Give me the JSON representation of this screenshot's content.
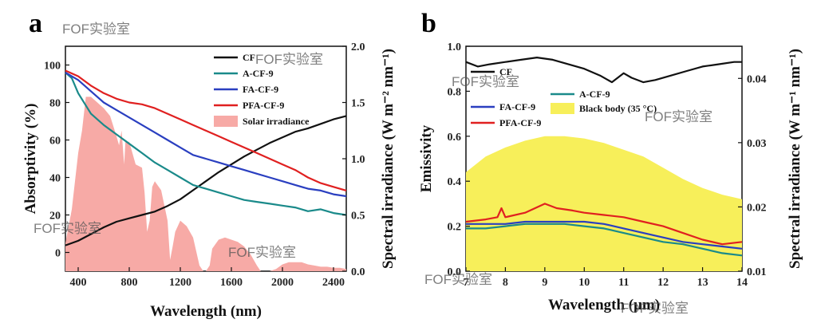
{
  "watermark": "FOF实验室",
  "chart_data": [
    {
      "panel": "a",
      "type": "line",
      "xlabel": "Wavelength (nm)",
      "ylabel": "Absorptivity (%)",
      "y2label": "Spectral irradiance (W m⁻² nm⁻¹)",
      "xlim": [
        300,
        2500
      ],
      "ylim": [
        -10,
        110
      ],
      "y2lim": [
        0,
        2.0
      ],
      "xticks": [
        400,
        800,
        1200,
        1600,
        2000,
        2400
      ],
      "yticks": [
        0,
        20,
        40,
        60,
        80,
        100
      ],
      "y2ticks": [
        "0.0",
        "0.5",
        "1.0",
        "1.5",
        "2.0"
      ],
      "legend_position": "top-right",
      "series": [
        {
          "name": "CF",
          "color": "#111111",
          "axis": "right",
          "x": [
            300,
            400,
            500,
            600,
            700,
            800,
            900,
            1000,
            1100,
            1200,
            1300,
            1400,
            1500,
            1600,
            1700,
            1800,
            1900,
            2000,
            2100,
            2200,
            2300,
            2400,
            2500
          ],
          "y": [
            0.23,
            0.27,
            0.33,
            0.39,
            0.44,
            0.47,
            0.5,
            0.53,
            0.58,
            0.64,
            0.72,
            0.8,
            0.88,
            0.95,
            1.02,
            1.08,
            1.14,
            1.19,
            1.24,
            1.27,
            1.31,
            1.35,
            1.38
          ]
        },
        {
          "name": "A-CF-9",
          "color": "#1a8a8a",
          "axis": "left",
          "x": [
            300,
            350,
            400,
            500,
            600,
            700,
            800,
            900,
            1000,
            1100,
            1200,
            1300,
            1400,
            1500,
            1600,
            1700,
            1800,
            1900,
            2000,
            2100,
            2200,
            2300,
            2400,
            2500
          ],
          "y": [
            96,
            93,
            85,
            74,
            68,
            63,
            58,
            53,
            48,
            44,
            40,
            36,
            34,
            32,
            30,
            28,
            27,
            26,
            25,
            24,
            22,
            23,
            21,
            20
          ]
        },
        {
          "name": "FA-CF-9",
          "color": "#2a3fc0",
          "axis": "left",
          "x": [
            300,
            400,
            500,
            600,
            700,
            800,
            900,
            1000,
            1100,
            1200,
            1300,
            1400,
            1500,
            1600,
            1700,
            1800,
            1900,
            2000,
            2100,
            2200,
            2300,
            2400,
            2500
          ],
          "y": [
            96,
            92,
            86,
            80,
            76,
            72,
            68,
            64,
            60,
            56,
            52,
            50,
            48,
            46,
            44,
            42,
            40,
            38,
            36,
            34,
            33,
            31,
            30
          ]
        },
        {
          "name": "PFA-CF-9",
          "color": "#e02020",
          "axis": "left",
          "x": [
            300,
            400,
            500,
            600,
            700,
            800,
            900,
            1000,
            1100,
            1200,
            1300,
            1400,
            1500,
            1600,
            1700,
            1800,
            1900,
            2000,
            2100,
            2200,
            2300,
            2400,
            2500
          ],
          "y": [
            97,
            94,
            89,
            85,
            82,
            80,
            79,
            77,
            74,
            71,
            68,
            65,
            62,
            59,
            56,
            53,
            50,
            47,
            44,
            40,
            37,
            35,
            33
          ]
        },
        {
          "name": "Solar irradiance",
          "color": "#f7aaa6",
          "axis": "right",
          "style": "fill",
          "x": [
            300,
            350,
            400,
            430,
            460,
            500,
            550,
            600,
            650,
            700,
            720,
            740,
            760,
            770,
            800,
            850,
            900,
            920,
            940,
            960,
            980,
            1000,
            1050,
            1100,
            1120,
            1140,
            1160,
            1200,
            1250,
            1300,
            1350,
            1380,
            1400,
            1430,
            1450,
            1500,
            1550,
            1600,
            1650,
            1700,
            1750,
            1800,
            1830,
            1850,
            1900,
            1950,
            2000,
            2050,
            2100,
            2150,
            2200,
            2250,
            2300,
            2350,
            2400,
            2450,
            2500
          ],
          "y": [
            0.25,
            0.55,
            1.05,
            1.25,
            1.55,
            1.55,
            1.5,
            1.45,
            1.38,
            1.2,
            1.12,
            1.25,
            0.95,
            1.15,
            1.15,
            0.95,
            0.92,
            0.7,
            0.35,
            0.45,
            0.75,
            0.8,
            0.72,
            0.45,
            0.1,
            0.22,
            0.35,
            0.45,
            0.4,
            0.3,
            0.05,
            0.0,
            0.0,
            0.05,
            0.2,
            0.28,
            0.3,
            0.28,
            0.26,
            0.22,
            0.15,
            0.05,
            0.0,
            0.0,
            0.0,
            0.02,
            0.06,
            0.08,
            0.08,
            0.08,
            0.06,
            0.05,
            0.04,
            0.04,
            0.03,
            0.03,
            0.02
          ]
        }
      ]
    },
    {
      "panel": "b",
      "type": "line",
      "xlabel": "Wavelength (μm)",
      "ylabel": "Emissivity",
      "y2label": "Spectral irradiance (W m⁻¹ nm⁻¹)",
      "xlim": [
        7,
        14
      ],
      "ylim": [
        0,
        1.0
      ],
      "y2lim": [
        0.01,
        0.045
      ],
      "xticks": [
        7,
        8,
        9,
        10,
        11,
        12,
        13,
        14
      ],
      "yticks": [
        "0.0",
        "0.2",
        "0.4",
        "0.6",
        "0.8",
        "1.0"
      ],
      "y2ticks": [
        "0.01",
        "0.02",
        "0.03",
        "0.04"
      ],
      "legend_position": "top-left",
      "series": [
        {
          "name": "CF",
          "color": "#111111",
          "axis": "left",
          "x": [
            7.0,
            7.3,
            7.6,
            8.0,
            8.4,
            8.8,
            9.2,
            9.6,
            10.0,
            10.4,
            10.7,
            11.0,
            11.2,
            11.5,
            11.8,
            12.2,
            12.6,
            13.0,
            13.4,
            13.8,
            14.0
          ],
          "y": [
            0.93,
            0.91,
            0.92,
            0.93,
            0.94,
            0.95,
            0.94,
            0.92,
            0.9,
            0.87,
            0.84,
            0.88,
            0.86,
            0.84,
            0.85,
            0.87,
            0.89,
            0.91,
            0.92,
            0.93,
            0.93
          ]
        },
        {
          "name": "A-CF-9",
          "color": "#1a8a8a",
          "axis": "left",
          "x": [
            7.0,
            7.5,
            8.0,
            8.5,
            9.0,
            9.5,
            10.0,
            10.5,
            11.0,
            11.5,
            12.0,
            12.5,
            13.0,
            13.5,
            14.0
          ],
          "y": [
            0.19,
            0.19,
            0.2,
            0.21,
            0.21,
            0.21,
            0.2,
            0.19,
            0.17,
            0.15,
            0.13,
            0.12,
            0.1,
            0.08,
            0.07
          ]
        },
        {
          "name": "FA-CF-9",
          "color": "#2a3fc0",
          "axis": "left",
          "x": [
            7.0,
            7.5,
            8.0,
            8.5,
            9.0,
            9.5,
            10.0,
            10.5,
            11.0,
            11.5,
            12.0,
            12.5,
            13.0,
            13.5,
            14.0
          ],
          "y": [
            0.21,
            0.21,
            0.21,
            0.22,
            0.22,
            0.22,
            0.22,
            0.21,
            0.19,
            0.17,
            0.15,
            0.13,
            0.12,
            0.11,
            0.1
          ]
        },
        {
          "name": "PFA-CF-9",
          "color": "#e02020",
          "axis": "left",
          "x": [
            7.0,
            7.5,
            7.8,
            7.9,
            8.0,
            8.5,
            9.0,
            9.3,
            9.7,
            10.0,
            10.5,
            11.0,
            11.5,
            12.0,
            12.5,
            13.0,
            13.5,
            14.0
          ],
          "y": [
            0.22,
            0.23,
            0.24,
            0.28,
            0.24,
            0.26,
            0.3,
            0.28,
            0.27,
            0.26,
            0.25,
            0.24,
            0.22,
            0.2,
            0.17,
            0.14,
            0.12,
            0.13
          ]
        },
        {
          "name": "Black body (35 °C)",
          "color": "#f7ef5a",
          "axis": "left",
          "style": "fill",
          "x": [
            7.0,
            7.5,
            8.0,
            8.5,
            9.0,
            9.5,
            10.0,
            10.5,
            11.0,
            11.5,
            12.0,
            12.5,
            13.0,
            13.5,
            14.0
          ],
          "y": [
            0.44,
            0.51,
            0.55,
            0.58,
            0.6,
            0.6,
            0.59,
            0.57,
            0.54,
            0.51,
            0.46,
            0.41,
            0.37,
            0.34,
            0.32
          ]
        }
      ]
    }
  ]
}
